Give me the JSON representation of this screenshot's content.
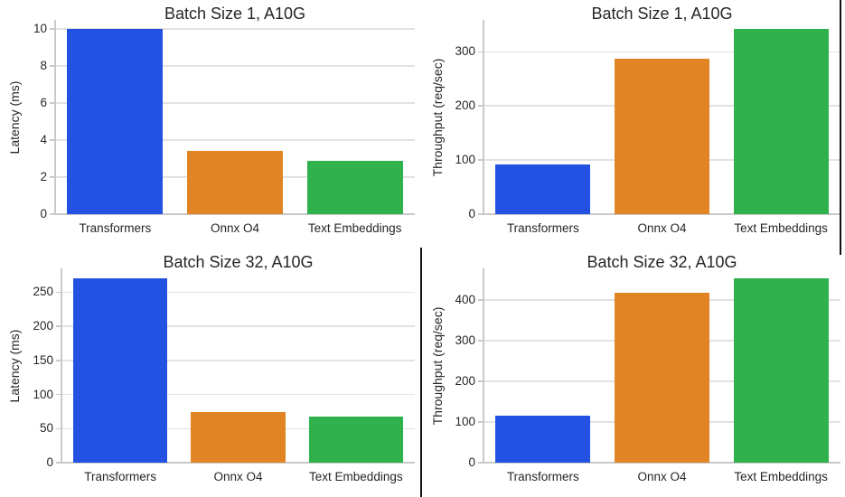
{
  "figure": {
    "background": "#ffffff",
    "description_titles": [
      "Batch Size 1, A10G",
      "Batch Size 32, A10G"
    ]
  },
  "style": {
    "text_color": "#262626",
    "grid_color": "#e2e2e2",
    "spine_color": "#c9c9c9",
    "divider_color": "#111111",
    "bar_colors": [
      "#2352E2",
      "#E08424",
      "#2FB14C"
    ]
  },
  "chart_data": [
    {
      "type": "bar",
      "title": "Batch Size 1, A10G",
      "xlabel": "",
      "ylabel": "Latency (ms)",
      "categories": [
        "Transformers",
        "Onnx O4",
        "Text Embeddings"
      ],
      "values": [
        10.0,
        3.4,
        2.9
      ],
      "yticks": [
        0,
        2,
        4,
        6,
        8,
        10
      ],
      "ylim": [
        0,
        10.5
      ],
      "grid": true,
      "legend_position": "none",
      "bar_colors": [
        "#2352E2",
        "#E08424",
        "#2FB14C"
      ]
    },
    {
      "type": "bar",
      "title": "Batch Size 1, A10G",
      "xlabel": "",
      "ylabel": "Throughput (req/sec)",
      "categories": [
        "Transformers",
        "Onnx O4",
        "Text Embeddings"
      ],
      "values": [
        92,
        288,
        342
      ],
      "yticks": [
        0,
        100,
        200,
        300
      ],
      "ylim": [
        0,
        359
      ],
      "grid": true,
      "legend_position": "none",
      "bar_colors": [
        "#2352E2",
        "#E08424",
        "#2FB14C"
      ]
    },
    {
      "type": "bar",
      "title": "Batch Size 32, A10G",
      "xlabel": "",
      "ylabel": "Latency (ms)",
      "categories": [
        "Transformers",
        "Onnx O4",
        "Text Embeddings"
      ],
      "values": [
        271,
        74,
        68
      ],
      "yticks": [
        0,
        50,
        100,
        150,
        200,
        250
      ],
      "ylim": [
        0,
        285
      ],
      "grid": true,
      "legend_position": "none",
      "bar_colors": [
        "#2352E2",
        "#E08424",
        "#2FB14C"
      ]
    },
    {
      "type": "bar",
      "title": "Batch Size 32, A10G",
      "xlabel": "",
      "ylabel": "Throughput (req/sec)",
      "categories": [
        "Transformers",
        "Onnx O4",
        "Text Embeddings"
      ],
      "values": [
        115,
        418,
        454
      ],
      "yticks": [
        0,
        100,
        200,
        300,
        400
      ],
      "ylim": [
        0,
        478
      ],
      "grid": true,
      "legend_position": "none",
      "bar_colors": [
        "#2352E2",
        "#E08424",
        "#2FB14C"
      ]
    }
  ]
}
